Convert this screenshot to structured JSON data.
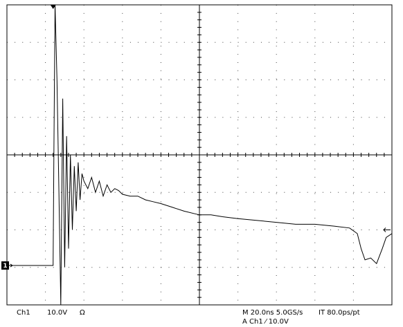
{
  "chart_data": {
    "type": "line",
    "x": [
      0,
      1.2,
      1.22,
      1.25,
      1.3,
      1.35,
      1.4,
      1.45,
      1.5,
      1.55,
      1.6,
      1.65,
      1.7,
      1.75,
      1.8,
      1.85,
      1.9,
      1.95,
      2.0,
      2.1,
      2.2,
      2.3,
      2.4,
      2.5,
      2.6,
      2.7,
      2.8,
      2.9,
      3.0,
      3.2,
      3.4,
      3.6,
      3.8,
      4.0,
      4.3,
      4.6,
      5.0,
      5.3,
      5.6,
      6.0,
      6.5,
      7.0,
      7.5,
      8.0,
      8.5,
      8.9,
      9.1,
      9.2,
      9.3,
      9.45,
      9.6,
      9.75,
      9.85,
      10.0
    ],
    "values": [
      -2.95,
      -2.95,
      0,
      4,
      2,
      -1,
      -4,
      1.5,
      -3,
      0.5,
      -2.5,
      0,
      -2,
      -0.3,
      -1.5,
      -0.2,
      -1.2,
      -0.5,
      -0.7,
      -0.9,
      -0.6,
      -1.0,
      -0.7,
      -1.1,
      -0.8,
      -1.0,
      -0.9,
      -0.95,
      -1.05,
      -1.1,
      -1.1,
      -1.2,
      -1.25,
      -1.3,
      -1.4,
      -1.5,
      -1.6,
      -1.6,
      -1.65,
      -1.7,
      -1.75,
      -1.8,
      -1.85,
      -1.85,
      -1.9,
      -1.95,
      -2.1,
      -2.5,
      -2.8,
      -2.75,
      -2.9,
      -2.5,
      -2.2,
      -2.1
    ],
    "color": "#000000",
    "xlim": [
      0,
      10
    ],
    "ylim": [
      -4,
      4
    ],
    "xticks": [
      0,
      1,
      2,
      3,
      4,
      5,
      6,
      7,
      8,
      9,
      10
    ],
    "yticks": [
      -4,
      -3,
      -2,
      -1,
      0,
      1,
      2,
      3,
      4
    ],
    "grid": true,
    "channel_marker": {
      "label": "1",
      "level": -2.95
    },
    "trigger_position": 1.2,
    "trigger_level": -2.0,
    "status": {
      "channel": "Ch1",
      "scale": "10.0V",
      "coupling": "Ω",
      "timebase": "M 20.0ns 5.0GS/s",
      "interval": "IT 80.0ps/pt",
      "trigger": "A  Ch1  ⁄  10.0V"
    }
  }
}
